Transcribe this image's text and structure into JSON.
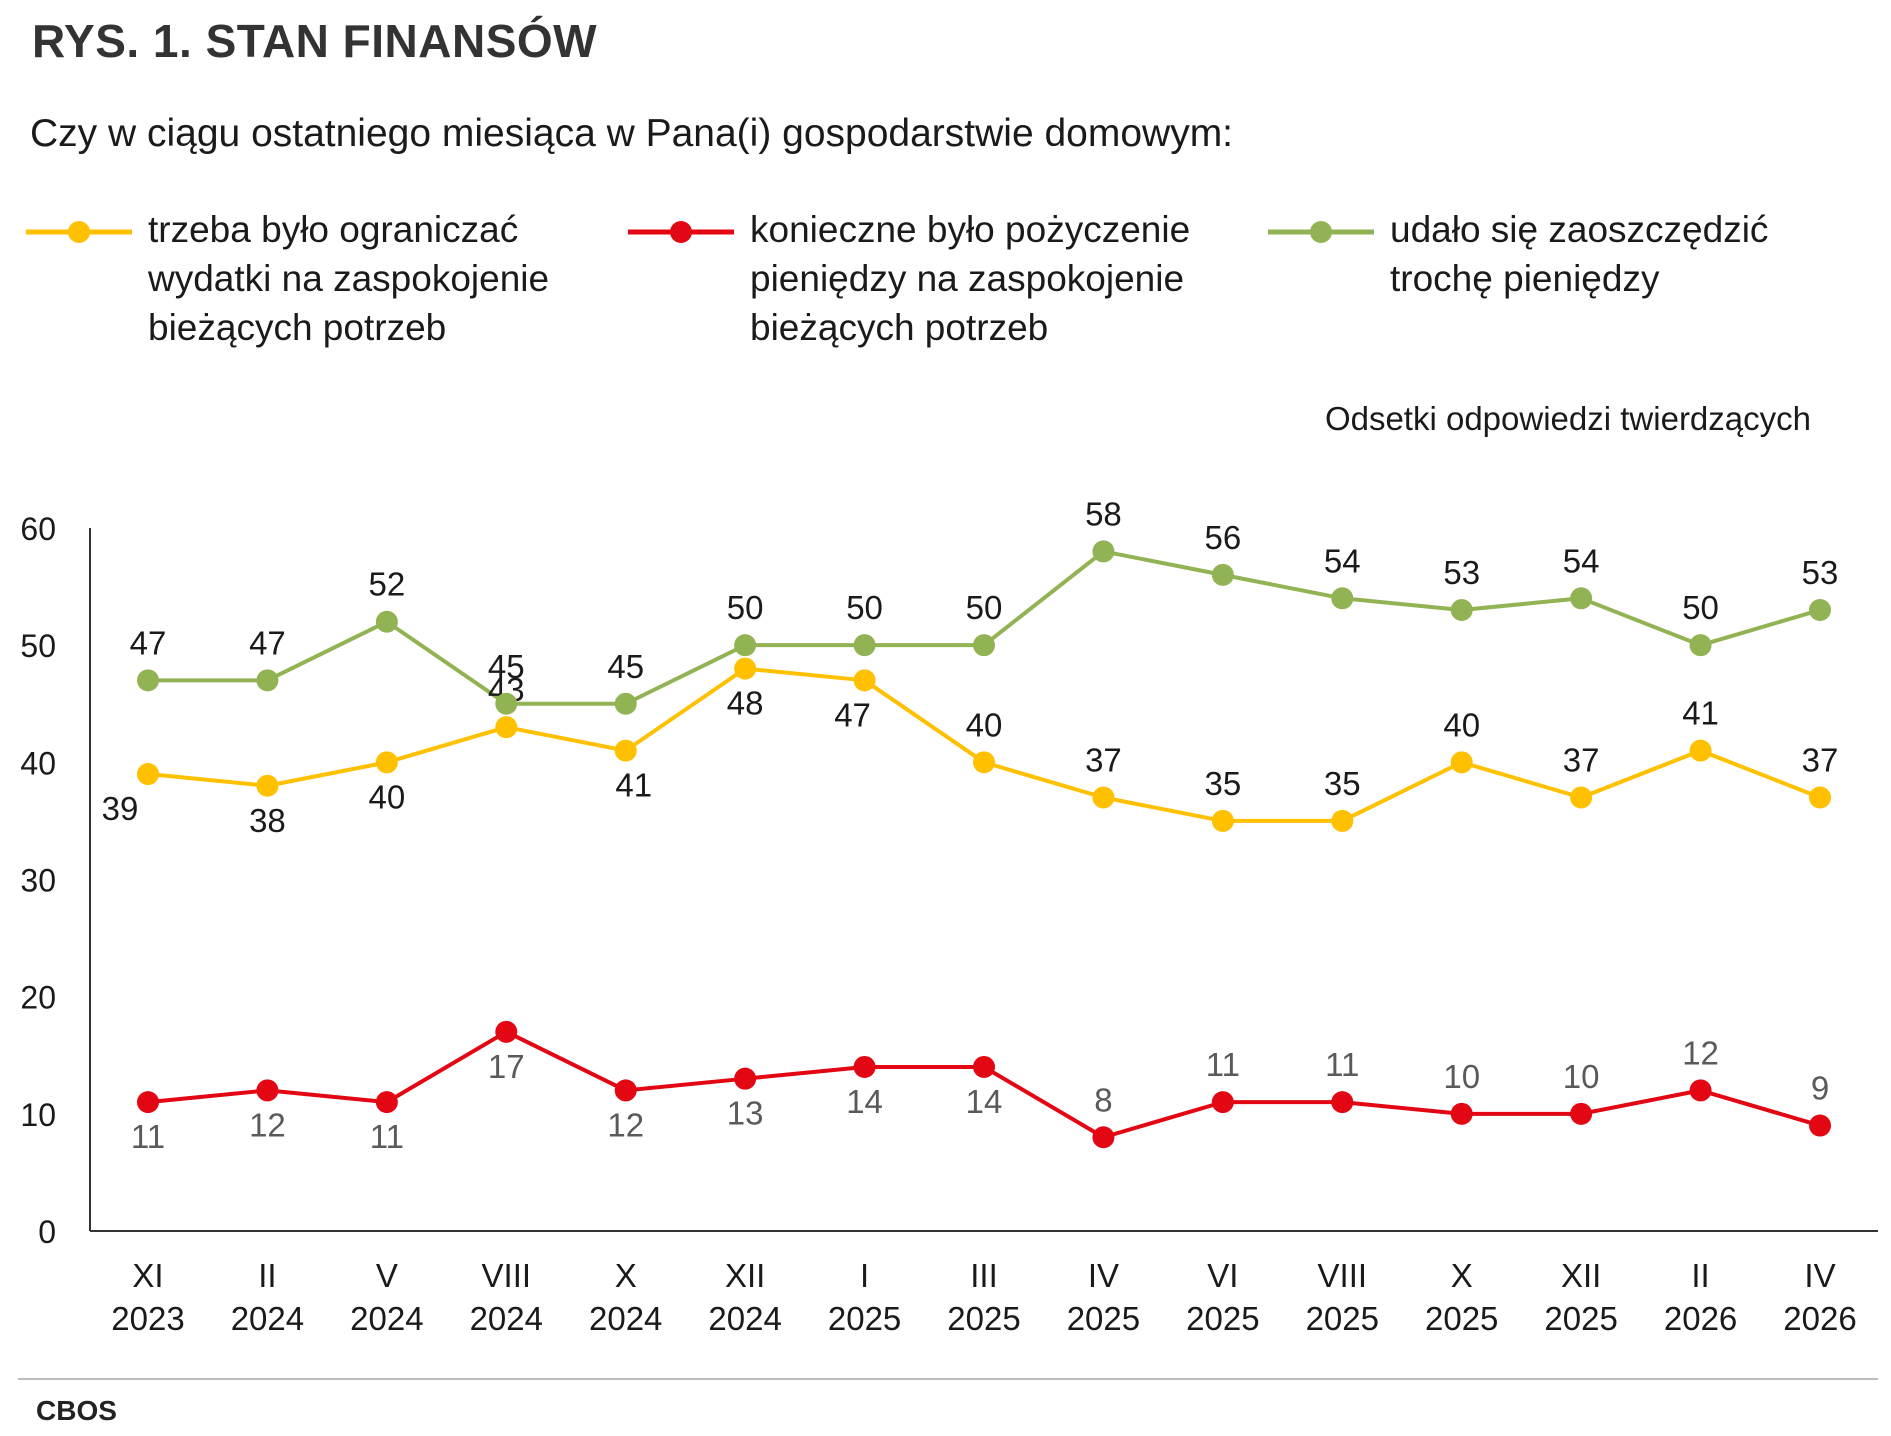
{
  "title": "RYS. 1. STAN FINANSÓW",
  "subtitle": "Czy w ciągu ostatniego miesiąca w Pana(i) gospodarstwie domowym:",
  "units_note": "Odsetki odpowiedzi twierdzących",
  "source": "CBOS",
  "legend": [
    {
      "lines": [
        "trzeba było ograniczać",
        "wydatki na zaspokojenie",
        "bieżących potrzeb"
      ],
      "color": "#FFC000"
    },
    {
      "lines": [
        "konieczne było pożyczenie",
        "pieniędzy na zaspokojenie",
        "bieżących potrzeb"
      ],
      "color": "#E30613"
    },
    {
      "lines": [
        "udało się zaoszczędzić",
        "trochę pieniędzy"
      ],
      "color": "#92B353"
    }
  ],
  "chart_data": {
    "type": "line",
    "categories": [
      [
        "XI",
        "2023"
      ],
      [
        "II",
        "2024"
      ],
      [
        "V",
        "2024"
      ],
      [
        "VIII",
        "2024"
      ],
      [
        "X",
        "2024"
      ],
      [
        "XII",
        "2024"
      ],
      [
        "I",
        "2025"
      ],
      [
        "III",
        "2025"
      ],
      [
        "IV",
        "2025"
      ],
      [
        "VI",
        "2025"
      ],
      [
        "VIII",
        "2025"
      ],
      [
        "X",
        "2025"
      ],
      [
        "XII",
        "2025"
      ],
      [
        "II",
        "2026"
      ],
      [
        "IV",
        "2026"
      ]
    ],
    "series": [
      {
        "name": "trzeba było ograniczać wydatki na zaspokojenie bieżących potrzeb",
        "color": "#FFC000",
        "label_color": "#1a1a1a",
        "values": [
          39,
          38,
          40,
          43,
          41,
          48,
          47,
          40,
          37,
          35,
          35,
          40,
          37,
          41,
          37
        ]
      },
      {
        "name": "konieczne było pożyczenie pieniędzy na zaspokojenie bieżących potrzeb",
        "color": "#E30613",
        "label_color": "#5a5a5a",
        "values": [
          11,
          12,
          11,
          17,
          12,
          13,
          14,
          14,
          8,
          11,
          11,
          10,
          10,
          12,
          9
        ]
      },
      {
        "name": "udało się zaoszczędzić trochę pieniędzy",
        "color": "#92B353",
        "label_color": "#1a1a1a",
        "values": [
          47,
          47,
          52,
          45,
          45,
          50,
          50,
          50,
          58,
          56,
          54,
          53,
          54,
          50,
          53
        ]
      }
    ],
    "yticks": [
      0,
      10,
      20,
      30,
      40,
      50,
      60
    ],
    "ylim": [
      0,
      60
    ],
    "grid": false,
    "legend_position": "top"
  }
}
